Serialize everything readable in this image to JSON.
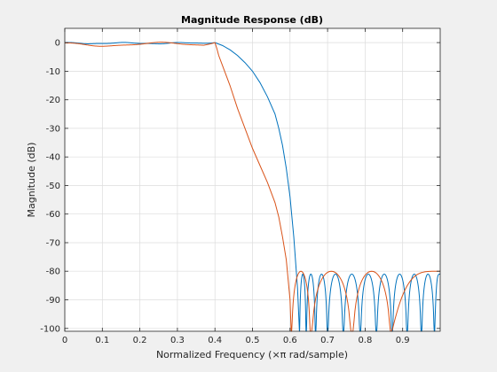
{
  "chart_data": {
    "type": "line",
    "title": "Magnitude Response (dB)",
    "xlabel": "Normalized Frequency (×π rad/sample)",
    "ylabel": "Magnitude (dB)",
    "xlim": [
      0,
      1
    ],
    "ylim": [
      -101,
      5
    ],
    "xticks": [
      "0",
      "0.1",
      "0.2",
      "0.3",
      "0.4",
      "0.5",
      "0.6",
      "0.7",
      "0.8",
      "0.9"
    ],
    "xtick_values": [
      0,
      0.1,
      0.2,
      0.3,
      0.4,
      0.5,
      0.6,
      0.7,
      0.8,
      0.9
    ],
    "yticks": [
      "0",
      "-10",
      "-20",
      "-30",
      "-40",
      "-50",
      "-60",
      "-70",
      "-80",
      "-90",
      "-100"
    ],
    "ytick_values": [
      0,
      -10,
      -20,
      -30,
      -40,
      -50,
      -60,
      -70,
      -80,
      -90,
      -100
    ],
    "grid": true,
    "series": [
      {
        "color": "#0072bd",
        "passband_edge": 0.4,
        "passband_ripple_db": 0.4,
        "transition": [
          [
            0.4,
            0
          ],
          [
            0.42,
            -1
          ],
          [
            0.44,
            -2.5
          ],
          [
            0.46,
            -4.5
          ],
          [
            0.48,
            -7
          ],
          [
            0.5,
            -10
          ],
          [
            0.52,
            -14
          ],
          [
            0.54,
            -19
          ],
          [
            0.56,
            -25
          ],
          [
            0.57,
            -30
          ],
          [
            0.58,
            -36
          ],
          [
            0.59,
            -44
          ],
          [
            0.6,
            -54
          ],
          [
            0.61,
            -68
          ],
          [
            0.62,
            -86
          ]
        ],
        "stopband_floor_db": -81,
        "stopband_nulls": [
          0.625,
          0.643,
          0.668,
          0.7,
          0.742,
          0.787,
          0.83,
          0.872,
          0.912,
          0.95,
          0.985
        ]
      },
      {
        "color": "#d95319",
        "passband_edge": 0.4,
        "passband_ripple_db": 1,
        "transition": [
          [
            0.4,
            0
          ],
          [
            0.405,
            -2
          ],
          [
            0.41,
            -4.5
          ],
          [
            0.42,
            -8
          ],
          [
            0.44,
            -15
          ],
          [
            0.46,
            -23
          ],
          [
            0.48,
            -30
          ],
          [
            0.5,
            -37
          ],
          [
            0.52,
            -43
          ],
          [
            0.54,
            -49
          ],
          [
            0.56,
            -56
          ],
          [
            0.57,
            -61
          ],
          [
            0.58,
            -68
          ],
          [
            0.59,
            -76
          ],
          [
            0.6,
            -90
          ]
        ],
        "stopband_floor_db": -80,
        "stopband_nulls": [
          0.603,
          0.655,
          0.765,
          0.87
        ]
      }
    ]
  }
}
